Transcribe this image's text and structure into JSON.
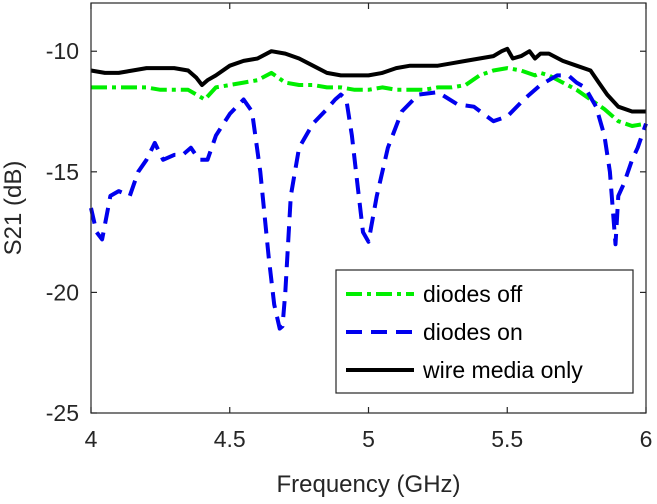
{
  "chart_data": {
    "type": "line",
    "title": "",
    "xlabel": "Frequency (GHz)",
    "ylabel": "S21 (dB)",
    "xlim": [
      4,
      6
    ],
    "ylim": [
      -25,
      -8
    ],
    "xticks": [
      4,
      4.5,
      5,
      5.5,
      6
    ],
    "xtick_labels": [
      "4",
      "4.5",
      "5",
      "5.5",
      "6"
    ],
    "yticks": [
      -25,
      -20,
      -15,
      -10
    ],
    "ytick_labels": [
      "-25",
      "-20",
      "-15",
      "-10"
    ],
    "grid": false,
    "legend_position": "bottom-right",
    "series": [
      {
        "name": "diodes off",
        "color": "#00ee00",
        "style": "dash-dot",
        "x": [
          4.0,
          4.05,
          4.1,
          4.15,
          4.2,
          4.25,
          4.3,
          4.35,
          4.38,
          4.41,
          4.45,
          4.5,
          4.55,
          4.6,
          4.65,
          4.7,
          4.75,
          4.8,
          4.85,
          4.9,
          4.95,
          5.0,
          5.05,
          5.1,
          5.15,
          5.2,
          5.25,
          5.3,
          5.35,
          5.4,
          5.45,
          5.5,
          5.55,
          5.6,
          5.62,
          5.65,
          5.7,
          5.75,
          5.8,
          5.85,
          5.9,
          5.95,
          6.0
        ],
        "y": [
          -11.5,
          -11.5,
          -11.5,
          -11.5,
          -11.5,
          -11.6,
          -11.6,
          -11.6,
          -11.8,
          -12.0,
          -11.5,
          -11.4,
          -11.3,
          -11.2,
          -10.9,
          -11.3,
          -11.4,
          -11.4,
          -11.5,
          -11.5,
          -11.6,
          -11.6,
          -11.5,
          -11.6,
          -11.6,
          -11.6,
          -11.5,
          -11.5,
          -11.4,
          -11.0,
          -10.8,
          -10.7,
          -10.8,
          -11.0,
          -10.9,
          -11.0,
          -11.3,
          -11.6,
          -12.0,
          -12.4,
          -12.9,
          -13.1,
          -13.0
        ]
      },
      {
        "name": "diodes on",
        "color": "#0000ee",
        "style": "dashed",
        "x": [
          4.0,
          4.02,
          4.04,
          4.07,
          4.1,
          4.14,
          4.17,
          4.2,
          4.23,
          4.26,
          4.3,
          4.33,
          4.36,
          4.39,
          4.42,
          4.45,
          4.5,
          4.55,
          4.58,
          4.61,
          4.64,
          4.66,
          4.68,
          4.69,
          4.7,
          4.72,
          4.75,
          4.8,
          4.85,
          4.88,
          4.9,
          4.92,
          4.94,
          4.96,
          4.98,
          5.0,
          5.03,
          5.07,
          5.12,
          5.18,
          5.25,
          5.32,
          5.38,
          5.45,
          5.5,
          5.56,
          5.62,
          5.68,
          5.72,
          5.75,
          5.78,
          5.82,
          5.85,
          5.87,
          5.88,
          5.89,
          5.9,
          5.92,
          5.95,
          5.97,
          6.0
        ],
        "y": [
          -16.5,
          -17.5,
          -17.8,
          -16.0,
          -15.8,
          -16.0,
          -15.0,
          -14.5,
          -13.8,
          -14.5,
          -14.3,
          -14.3,
          -14.0,
          -14.5,
          -14.5,
          -13.5,
          -12.6,
          -12.0,
          -12.5,
          -15.0,
          -18.5,
          -20.5,
          -21.5,
          -21.4,
          -20.0,
          -16.0,
          -14.0,
          -13.0,
          -12.4,
          -12.0,
          -11.8,
          -12.0,
          -13.5,
          -15.5,
          -17.5,
          -17.9,
          -16.0,
          -14.0,
          -12.5,
          -11.8,
          -11.7,
          -12.2,
          -12.3,
          -12.9,
          -12.7,
          -12.0,
          -11.4,
          -11.0,
          -11.0,
          -11.3,
          -11.5,
          -12.3,
          -13.5,
          -15.0,
          -16.5,
          -18.0,
          -16.0,
          -15.5,
          -14.5,
          -14.0,
          -13.0
        ]
      },
      {
        "name": "wire media only",
        "color": "#000000",
        "style": "solid",
        "x": [
          4.0,
          4.05,
          4.1,
          4.15,
          4.2,
          4.25,
          4.3,
          4.35,
          4.38,
          4.4,
          4.42,
          4.45,
          4.5,
          4.55,
          4.6,
          4.65,
          4.7,
          4.75,
          4.8,
          4.85,
          4.9,
          4.95,
          5.0,
          5.05,
          5.1,
          5.15,
          5.2,
          5.25,
          5.3,
          5.35,
          5.4,
          5.45,
          5.48,
          5.5,
          5.52,
          5.55,
          5.58,
          5.6,
          5.62,
          5.65,
          5.7,
          5.75,
          5.8,
          5.83,
          5.86,
          5.9,
          5.95,
          6.0
        ],
        "y": [
          -10.8,
          -10.9,
          -10.9,
          -10.8,
          -10.7,
          -10.7,
          -10.7,
          -10.8,
          -11.1,
          -11.4,
          -11.2,
          -11.0,
          -10.6,
          -10.4,
          -10.3,
          -10.0,
          -10.1,
          -10.3,
          -10.6,
          -10.9,
          -11.0,
          -11.0,
          -11.0,
          -10.9,
          -10.7,
          -10.6,
          -10.6,
          -10.6,
          -10.5,
          -10.4,
          -10.3,
          -10.2,
          -10.0,
          -9.9,
          -10.3,
          -10.2,
          -10.0,
          -10.3,
          -10.1,
          -10.1,
          -10.4,
          -10.6,
          -10.8,
          -11.3,
          -11.8,
          -12.3,
          -12.5,
          -12.5
        ]
      }
    ]
  }
}
